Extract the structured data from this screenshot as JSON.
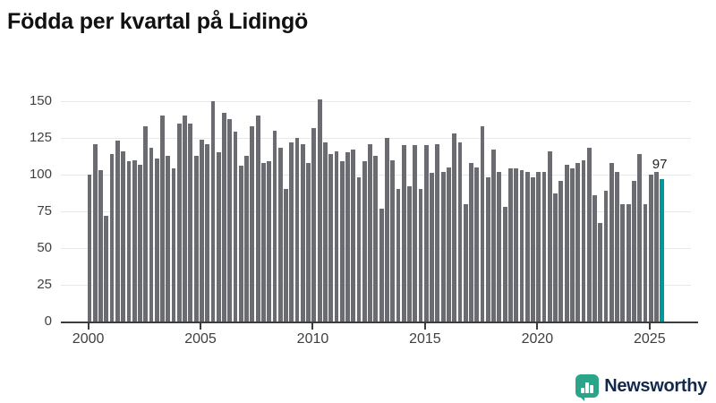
{
  "title": "Födda per kvartal på Lidingö",
  "annotation": {
    "value": "97"
  },
  "logo": {
    "text": "Newsworthy",
    "icon": "bar-chart-bubble-icon"
  },
  "colors": {
    "bar": "#6b6b72",
    "highlight": "#00989b",
    "grid": "#e8e8e8",
    "axis": "#3c3c3c",
    "title": "#111111",
    "tick_label": "#3f3f3f",
    "logo_icon": "#2ba58a",
    "logo_text": "#13294b",
    "background": "#ffffff"
  },
  "chart_data": {
    "type": "bar",
    "title": "Födda per kvartal på Lidingö",
    "xlabel": "",
    "ylabel": "",
    "start_quarter": "2000-Q1",
    "end_quarter": "2025-Q3",
    "x_tick_years": [
      2000,
      2005,
      2010,
      2015,
      2020,
      2025
    ],
    "y_ticks": [
      0,
      25,
      50,
      75,
      100,
      125,
      150
    ],
    "ylim": [
      0,
      150
    ],
    "grid": true,
    "legend": false,
    "highlight_last": true,
    "highlight_label": "97",
    "values": [
      100,
      121,
      103,
      72,
      114,
      123,
      116,
      109,
      110,
      107,
      133,
      118,
      111,
      140,
      113,
      104,
      135,
      140,
      135,
      113,
      124,
      121,
      150,
      115,
      142,
      138,
      129,
      106,
      113,
      133,
      140,
      108,
      109,
      130,
      118,
      90,
      122,
      125,
      121,
      108,
      132,
      151,
      122,
      114,
      116,
      109,
      115,
      117,
      98,
      109,
      121,
      113,
      77,
      125,
      110,
      90,
      120,
      92,
      120,
      90,
      120,
      101,
      121,
      102,
      105,
      128,
      122,
      80,
      108,
      105,
      133,
      98,
      117,
      102,
      78,
      104,
      104,
      103,
      102,
      98,
      102,
      102,
      116,
      87,
      96,
      107,
      104,
      108,
      110,
      118,
      86,
      67,
      89,
      108,
      102,
      80,
      80,
      96,
      114,
      80,
      100,
      102,
      97
    ]
  }
}
